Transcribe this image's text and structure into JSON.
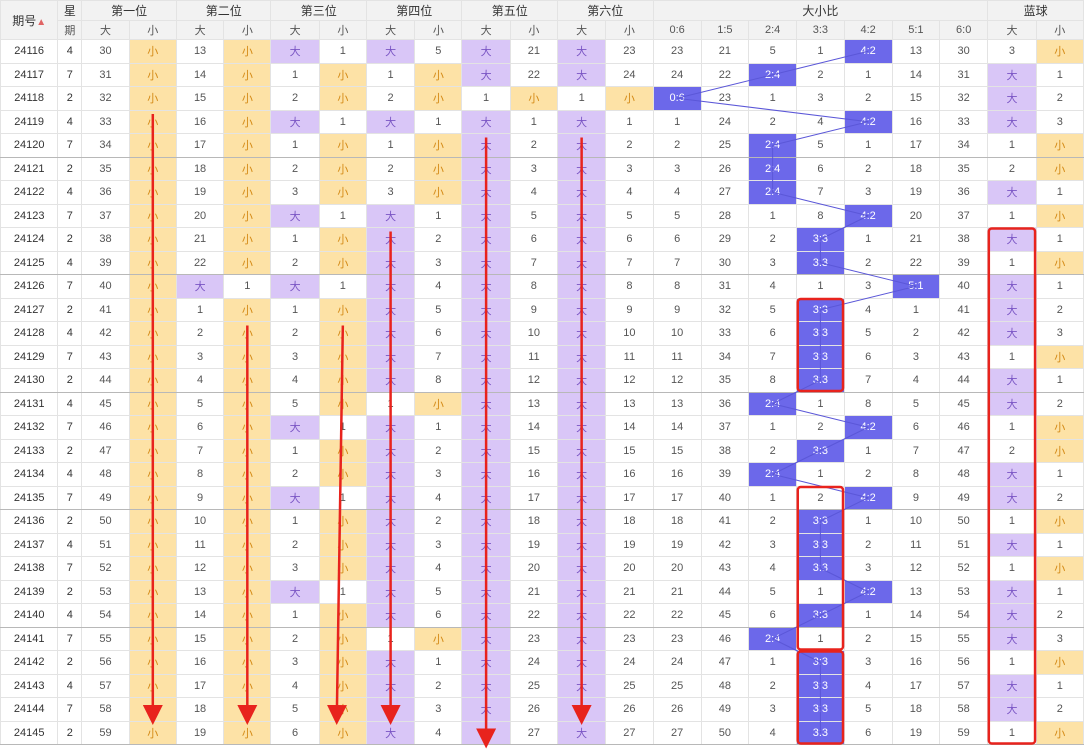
{
  "header": {
    "period_label": "期号",
    "weekday_label_top": "星",
    "weekday_label_bottom": "期",
    "positions": [
      "第一位",
      "第二位",
      "第三位",
      "第四位",
      "第五位",
      "第六位"
    ],
    "ratio_title": "大小比",
    "blue_title": "蓝球",
    "big": "大",
    "small": "小",
    "ratio_cols": [
      "0:6",
      "1:5",
      "2:4",
      "3:3",
      "4:2",
      "5:1",
      "6:0"
    ]
  },
  "rows": [
    {
      "p": "24116",
      "w": "4",
      "pos": [
        [
          "30",
          "小"
        ],
        [
          "13",
          "小"
        ],
        [
          "大",
          "1"
        ],
        [
          "大",
          "5"
        ],
        [
          "大",
          "21"
        ],
        [
          "大",
          "23"
        ]
      ],
      "r": [
        "23",
        "21",
        "5",
        "1",
        "4:2",
        "13",
        "30"
      ],
      "b": [
        "3",
        "小"
      ]
    },
    {
      "p": "24117",
      "w": "7",
      "pos": [
        [
          "31",
          "小"
        ],
        [
          "14",
          "小"
        ],
        [
          "1",
          "小"
        ],
        [
          "1",
          "小"
        ],
        [
          "大",
          "22"
        ],
        [
          "大",
          "24"
        ]
      ],
      "r": [
        "24",
        "22",
        "2:4",
        "2",
        "1",
        "14",
        "31"
      ],
      "b": [
        "大",
        "1"
      ]
    },
    {
      "p": "24118",
      "w": "2",
      "pos": [
        [
          "32",
          "小"
        ],
        [
          "15",
          "小"
        ],
        [
          "2",
          "小"
        ],
        [
          "2",
          "小"
        ],
        [
          "1",
          "小"
        ],
        [
          "1",
          "小"
        ]
      ],
      "r": [
        "0:6",
        "23",
        "1",
        "3",
        "2",
        "15",
        "32"
      ],
      "b": [
        "大",
        "2"
      ]
    },
    {
      "p": "24119",
      "w": "4",
      "pos": [
        [
          "33",
          "小"
        ],
        [
          "16",
          "小"
        ],
        [
          "大",
          "1"
        ],
        [
          "大",
          "1"
        ],
        [
          "大",
          "1"
        ],
        [
          "大",
          "1"
        ]
      ],
      "r": [
        "1",
        "24",
        "2",
        "4",
        "4:2",
        "16",
        "33"
      ],
      "b": [
        "大",
        "3"
      ]
    },
    {
      "p": "24120",
      "w": "7",
      "pos": [
        [
          "34",
          "小"
        ],
        [
          "17",
          "小"
        ],
        [
          "1",
          "小"
        ],
        [
          "1",
          "小"
        ],
        [
          "大",
          "2"
        ],
        [
          "大",
          "2"
        ]
      ],
      "r": [
        "2",
        "25",
        "2:4",
        "5",
        "1",
        "17",
        "34"
      ],
      "b": [
        "1",
        "小"
      ]
    },
    {
      "p": "24121",
      "w": "2",
      "pos": [
        [
          "35",
          "小"
        ],
        [
          "18",
          "小"
        ],
        [
          "2",
          "小"
        ],
        [
          "2",
          "小"
        ],
        [
          "大",
          "3"
        ],
        [
          "大",
          "3"
        ]
      ],
      "r": [
        "3",
        "26",
        "2:4",
        "6",
        "2",
        "18",
        "35"
      ],
      "b": [
        "2",
        "小"
      ]
    },
    {
      "p": "24122",
      "w": "4",
      "pos": [
        [
          "36",
          "小"
        ],
        [
          "19",
          "小"
        ],
        [
          "3",
          "小"
        ],
        [
          "3",
          "小"
        ],
        [
          "大",
          "4"
        ],
        [
          "大",
          "4"
        ]
      ],
      "r": [
        "4",
        "27",
        "2:4",
        "7",
        "3",
        "19",
        "36"
      ],
      "b": [
        "大",
        "1"
      ]
    },
    {
      "p": "24123",
      "w": "7",
      "pos": [
        [
          "37",
          "小"
        ],
        [
          "20",
          "小"
        ],
        [
          "大",
          "1"
        ],
        [
          "大",
          "1"
        ],
        [
          "大",
          "5"
        ],
        [
          "大",
          "5"
        ]
      ],
      "r": [
        "5",
        "28",
        "1",
        "8",
        "4:2",
        "20",
        "37"
      ],
      "b": [
        "1",
        "小"
      ]
    },
    {
      "p": "24124",
      "w": "2",
      "pos": [
        [
          "38",
          "小"
        ],
        [
          "21",
          "小"
        ],
        [
          "1",
          "小"
        ],
        [
          "大",
          "2"
        ],
        [
          "大",
          "6"
        ],
        [
          "大",
          "6"
        ]
      ],
      "r": [
        "6",
        "29",
        "2",
        "3:3",
        "1",
        "21",
        "38"
      ],
      "b": [
        "大",
        "1"
      ]
    },
    {
      "p": "24125",
      "w": "4",
      "pos": [
        [
          "39",
          "小"
        ],
        [
          "22",
          "小"
        ],
        [
          "2",
          "小"
        ],
        [
          "大",
          "3"
        ],
        [
          "大",
          "7"
        ],
        [
          "大",
          "7"
        ]
      ],
      "r": [
        "7",
        "30",
        "3",
        "3:3",
        "2",
        "22",
        "39"
      ],
      "b": [
        "1",
        "小"
      ]
    },
    {
      "p": "24126",
      "w": "7",
      "pos": [
        [
          "40",
          "小"
        ],
        [
          "大",
          "1"
        ],
        [
          "大",
          "1"
        ],
        [
          "大",
          "4"
        ],
        [
          "大",
          "8"
        ],
        [
          "大",
          "8"
        ]
      ],
      "r": [
        "8",
        "31",
        "4",
        "1",
        "3",
        "5:1",
        "40"
      ],
      "b": [
        "大",
        "1"
      ]
    },
    {
      "p": "24127",
      "w": "2",
      "pos": [
        [
          "41",
          "小"
        ],
        [
          "1",
          "小"
        ],
        [
          "1",
          "小"
        ],
        [
          "大",
          "5"
        ],
        [
          "大",
          "9"
        ],
        [
          "大",
          "9"
        ]
      ],
      "r": [
        "9",
        "32",
        "5",
        "3:3",
        "4",
        "1",
        "41"
      ],
      "b": [
        "大",
        "2"
      ]
    },
    {
      "p": "24128",
      "w": "4",
      "pos": [
        [
          "42",
          "小"
        ],
        [
          "2",
          "小"
        ],
        [
          "2",
          "小"
        ],
        [
          "大",
          "6"
        ],
        [
          "大",
          "10"
        ],
        [
          "大",
          "10"
        ]
      ],
      "r": [
        "10",
        "33",
        "6",
        "3:3",
        "5",
        "2",
        "42"
      ],
      "b": [
        "大",
        "3"
      ]
    },
    {
      "p": "24129",
      "w": "7",
      "pos": [
        [
          "43",
          "小"
        ],
        [
          "3",
          "小"
        ],
        [
          "3",
          "小"
        ],
        [
          "大",
          "7"
        ],
        [
          "大",
          "11"
        ],
        [
          "大",
          "11"
        ]
      ],
      "r": [
        "11",
        "34",
        "7",
        "3:3",
        "6",
        "3",
        "43"
      ],
      "b": [
        "1",
        "小"
      ]
    },
    {
      "p": "24130",
      "w": "2",
      "pos": [
        [
          "44",
          "小"
        ],
        [
          "4",
          "小"
        ],
        [
          "4",
          "小"
        ],
        [
          "大",
          "8"
        ],
        [
          "大",
          "12"
        ],
        [
          "大",
          "12"
        ]
      ],
      "r": [
        "12",
        "35",
        "8",
        "3:3",
        "7",
        "4",
        "44"
      ],
      "b": [
        "大",
        "1"
      ]
    },
    {
      "p": "24131",
      "w": "4",
      "pos": [
        [
          "45",
          "小"
        ],
        [
          "5",
          "小"
        ],
        [
          "5",
          "小"
        ],
        [
          "1",
          "小"
        ],
        [
          "大",
          "13"
        ],
        [
          "大",
          "13"
        ]
      ],
      "r": [
        "13",
        "36",
        "2:4",
        "1",
        "8",
        "5",
        "45"
      ],
      "b": [
        "大",
        "2"
      ]
    },
    {
      "p": "24132",
      "w": "7",
      "pos": [
        [
          "46",
          "小"
        ],
        [
          "6",
          "小"
        ],
        [
          "大",
          "1"
        ],
        [
          "大",
          "1"
        ],
        [
          "大",
          "14"
        ],
        [
          "大",
          "14"
        ]
      ],
      "r": [
        "14",
        "37",
        "1",
        "2",
        "4:2",
        "6",
        "46"
      ],
      "b": [
        "1",
        "小"
      ]
    },
    {
      "p": "24133",
      "w": "2",
      "pos": [
        [
          "47",
          "小"
        ],
        [
          "7",
          "小"
        ],
        [
          "1",
          "小"
        ],
        [
          "大",
          "2"
        ],
        [
          "大",
          "15"
        ],
        [
          "大",
          "15"
        ]
      ],
      "r": [
        "15",
        "38",
        "2",
        "3:3",
        "1",
        "7",
        "47"
      ],
      "b": [
        "2",
        "小"
      ]
    },
    {
      "p": "24134",
      "w": "4",
      "pos": [
        [
          "48",
          "小"
        ],
        [
          "8",
          "小"
        ],
        [
          "2",
          "小"
        ],
        [
          "大",
          "3"
        ],
        [
          "大",
          "16"
        ],
        [
          "大",
          "16"
        ]
      ],
      "r": [
        "16",
        "39",
        "2:4",
        "1",
        "2",
        "8",
        "48"
      ],
      "b": [
        "大",
        "1"
      ]
    },
    {
      "p": "24135",
      "w": "7",
      "pos": [
        [
          "49",
          "小"
        ],
        [
          "9",
          "小"
        ],
        [
          "大",
          "1"
        ],
        [
          "大",
          "4"
        ],
        [
          "大",
          "17"
        ],
        [
          "大",
          "17"
        ]
      ],
      "r": [
        "17",
        "40",
        "1",
        "2",
        "4:2",
        "9",
        "49"
      ],
      "b": [
        "大",
        "2"
      ]
    },
    {
      "p": "24136",
      "w": "2",
      "pos": [
        [
          "50",
          "小"
        ],
        [
          "10",
          "小"
        ],
        [
          "1",
          "小"
        ],
        [
          "大",
          "2"
        ],
        [
          "大",
          "18"
        ],
        [
          "大",
          "18"
        ]
      ],
      "r": [
        "18",
        "41",
        "2",
        "3:3",
        "1",
        "10",
        "50"
      ],
      "b": [
        "1",
        "小"
      ]
    },
    {
      "p": "24137",
      "w": "4",
      "pos": [
        [
          "51",
          "小"
        ],
        [
          "11",
          "小"
        ],
        [
          "2",
          "小"
        ],
        [
          "大",
          "3"
        ],
        [
          "大",
          "19"
        ],
        [
          "大",
          "19"
        ]
      ],
      "r": [
        "19",
        "42",
        "3",
        "3:3",
        "2",
        "11",
        "51"
      ],
      "b": [
        "大",
        "1"
      ]
    },
    {
      "p": "24138",
      "w": "7",
      "pos": [
        [
          "52",
          "小"
        ],
        [
          "12",
          "小"
        ],
        [
          "3",
          "小"
        ],
        [
          "大",
          "4"
        ],
        [
          "大",
          "20"
        ],
        [
          "大",
          "20"
        ]
      ],
      "r": [
        "20",
        "43",
        "4",
        "3:3",
        "3",
        "12",
        "52"
      ],
      "b": [
        "1",
        "小"
      ]
    },
    {
      "p": "24139",
      "w": "2",
      "pos": [
        [
          "53",
          "小"
        ],
        [
          "13",
          "小"
        ],
        [
          "大",
          "1"
        ],
        [
          "大",
          "5"
        ],
        [
          "大",
          "21"
        ],
        [
          "大",
          "21"
        ]
      ],
      "r": [
        "21",
        "44",
        "5",
        "1",
        "4:2",
        "13",
        "53"
      ],
      "b": [
        "大",
        "1"
      ]
    },
    {
      "p": "24140",
      "w": "4",
      "pos": [
        [
          "54",
          "小"
        ],
        [
          "14",
          "小"
        ],
        [
          "1",
          "小"
        ],
        [
          "大",
          "6"
        ],
        [
          "大",
          "22"
        ],
        [
          "大",
          "22"
        ]
      ],
      "r": [
        "22",
        "45",
        "6",
        "3:3",
        "1",
        "14",
        "54"
      ],
      "b": [
        "大",
        "2"
      ]
    },
    {
      "p": "24141",
      "w": "7",
      "pos": [
        [
          "55",
          "小"
        ],
        [
          "15",
          "小"
        ],
        [
          "2",
          "小"
        ],
        [
          "1",
          "小"
        ],
        [
          "大",
          "23"
        ],
        [
          "大",
          "23"
        ]
      ],
      "r": [
        "23",
        "46",
        "2:4",
        "1",
        "2",
        "15",
        "55"
      ],
      "b": [
        "大",
        "3"
      ]
    },
    {
      "p": "24142",
      "w": "2",
      "pos": [
        [
          "56",
          "小"
        ],
        [
          "16",
          "小"
        ],
        [
          "3",
          "小"
        ],
        [
          "大",
          "1"
        ],
        [
          "大",
          "24"
        ],
        [
          "大",
          "24"
        ]
      ],
      "r": [
        "24",
        "47",
        "1",
        "3:3",
        "3",
        "16",
        "56"
      ],
      "b": [
        "1",
        "小"
      ]
    },
    {
      "p": "24143",
      "w": "4",
      "pos": [
        [
          "57",
          "小"
        ],
        [
          "17",
          "小"
        ],
        [
          "4",
          "小"
        ],
        [
          "大",
          "2"
        ],
        [
          "大",
          "25"
        ],
        [
          "大",
          "25"
        ]
      ],
      "r": [
        "25",
        "48",
        "2",
        "3:3",
        "4",
        "17",
        "57"
      ],
      "b": [
        "大",
        "1"
      ]
    },
    {
      "p": "24144",
      "w": "7",
      "pos": [
        [
          "58",
          "小"
        ],
        [
          "18",
          "小"
        ],
        [
          "5",
          "小"
        ],
        [
          "大",
          "3"
        ],
        [
          "大",
          "26"
        ],
        [
          "大",
          "26"
        ]
      ],
      "r": [
        "26",
        "49",
        "3",
        "3:3",
        "5",
        "18",
        "58"
      ],
      "b": [
        "大",
        "2"
      ]
    },
    {
      "p": "24145",
      "w": "2",
      "pos": [
        [
          "59",
          "小"
        ],
        [
          "19",
          "小"
        ],
        [
          "6",
          "小"
        ],
        [
          "大",
          "4"
        ],
        [
          "大",
          "27"
        ],
        [
          "大",
          "27"
        ]
      ],
      "r": [
        "27",
        "50",
        "4",
        "3:3",
        "6",
        "19",
        "59"
      ],
      "b": [
        "1",
        "小"
      ]
    }
  ],
  "colors": {
    "big_bg": "#d9c6f7",
    "small_bg": "#fde2a6",
    "ratio_hit": "#6c68ea",
    "annotation": "#e8231d"
  }
}
